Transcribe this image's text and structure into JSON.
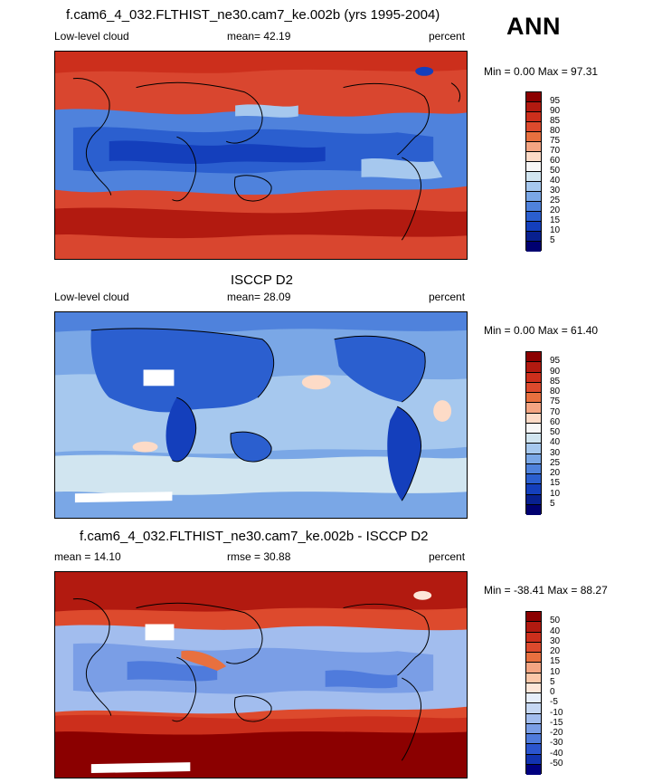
{
  "season": "ANN",
  "panels": [
    {
      "title": "f.cam6_4_032.FLTHIST_ne30.cam7_ke.002b (yrs 1995-2004)",
      "left_label": "Low-level cloud",
      "center_label": "mean=  42.19",
      "right_label": "percent",
      "minmax": "Min =   0.00 Max =  97.31",
      "colorbar": {
        "levels": [
          "95",
          "90",
          "85",
          "80",
          "75",
          "70",
          "60",
          "50",
          "40",
          "30",
          "25",
          "20",
          "15",
          "10",
          "5"
        ],
        "colors": [
          "#8b0000",
          "#b21a10",
          "#cc2f1c",
          "#dd4a2d",
          "#e8703f",
          "#f4a582",
          "#fddbc7",
          "#f7f7f7",
          "#d1e5f0",
          "#a6c8ee",
          "#7aa7e6",
          "#4f82dc",
          "#2b5fcf",
          "#143fbc",
          "#08208f",
          "#000070"
        ]
      }
    },
    {
      "title": "ISCCP D2",
      "left_label": "Low-level cloud",
      "center_label": "mean=  28.09",
      "right_label": "percent",
      "minmax": "Min =   0.00 Max =  61.40",
      "colorbar": {
        "levels": [
          "95",
          "90",
          "85",
          "80",
          "75",
          "70",
          "60",
          "50",
          "40",
          "30",
          "25",
          "20",
          "15",
          "10",
          "5"
        ],
        "colors": [
          "#8b0000",
          "#b21a10",
          "#cc2f1c",
          "#dd4a2d",
          "#e8703f",
          "#f4a582",
          "#fddbc7",
          "#f7f7f7",
          "#d1e5f0",
          "#a6c8ee",
          "#7aa7e6",
          "#4f82dc",
          "#2b5fcf",
          "#143fbc",
          "#08208f",
          "#000070"
        ]
      }
    },
    {
      "title": "f.cam6_4_032.FLTHIST_ne30.cam7_ke.002b - ISCCP D2",
      "left_label": "mean =  14.10",
      "center_label": "rmse =  30.88",
      "right_label": "percent",
      "minmax": "Min = -38.41 Max =  88.27",
      "colorbar": {
        "levels": [
          "50",
          "40",
          "30",
          "20",
          "15",
          "10",
          "5",
          "0",
          "-5",
          "-10",
          "-15",
          "-20",
          "-30",
          "-40",
          "-50"
        ],
        "colors": [
          "#8b0000",
          "#b21a10",
          "#cc2f1c",
          "#dd4a2d",
          "#e8703f",
          "#f4a582",
          "#fbc7a8",
          "#fde6d8",
          "#e6eefa",
          "#c6d8f3",
          "#a2bdee",
          "#7a9ee6",
          "#4f7bdc",
          "#2b55cf",
          "#1233b0",
          "#000080"
        ]
      }
    }
  ]
}
